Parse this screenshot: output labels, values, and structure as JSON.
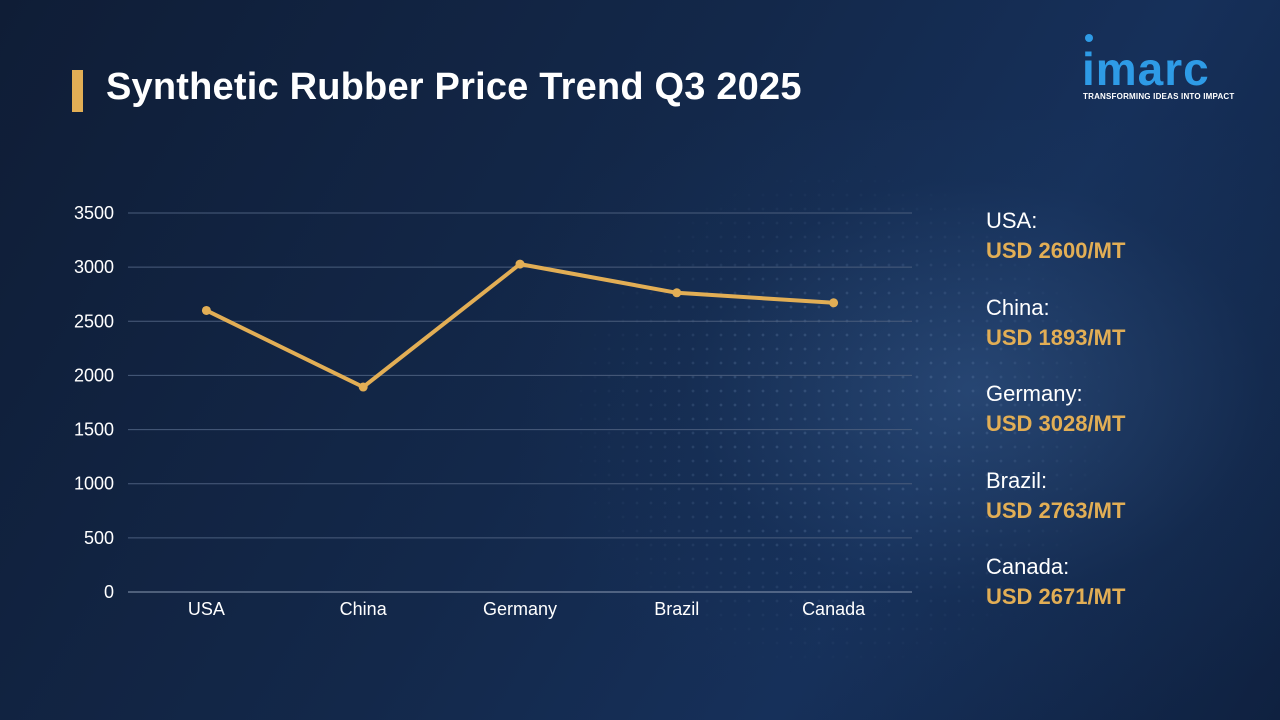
{
  "title": "Synthetic Rubber Price Trend Q3 2025",
  "logo": {
    "name": "imarc",
    "tagline": "TRANSFORMING IDEAS INTO IMPACT",
    "color": "#2e9be6"
  },
  "colors": {
    "accent": "#e2ae55",
    "background": "#13284a"
  },
  "chart_data": {
    "type": "line",
    "title": "",
    "xlabel": "",
    "ylabel": "",
    "categories": [
      "USA",
      "China",
      "Germany",
      "Brazil",
      "Canada"
    ],
    "series": [
      {
        "values": [
          2600,
          1893,
          3028,
          2763,
          2671
        ],
        "color": "#e2ae55"
      }
    ],
    "ylim": [
      0,
      3500
    ],
    "yticks": [
      0,
      500,
      1000,
      1500,
      2000,
      2500,
      3000,
      3500
    ],
    "grid": true,
    "legend": "none"
  },
  "side_labels": [
    {
      "country": "USA:",
      "price": "USD 2600/MT"
    },
    {
      "country": "China:",
      "price": "USD 1893/MT"
    },
    {
      "country": "Germany:",
      "price": "USD 3028/MT"
    },
    {
      "country": "Brazil:",
      "price": "USD 2763/MT"
    },
    {
      "country": "Canada:",
      "price": "USD 2671/MT"
    }
  ]
}
